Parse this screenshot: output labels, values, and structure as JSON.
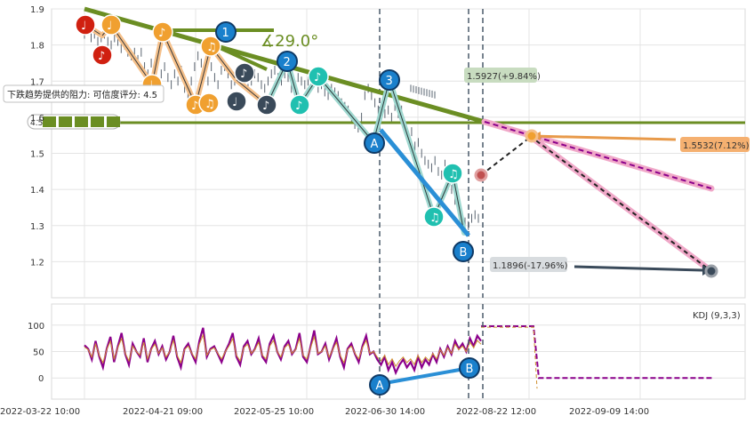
{
  "chart_data": [
    {
      "type": "line",
      "panel": "price",
      "ylim": [
        1.1,
        1.9
      ],
      "y_ticks": [
        "1.9",
        "1.8",
        "1.7",
        "1.6",
        "1.5",
        "1.4",
        "1.3",
        "1.2"
      ],
      "x_ticks": [
        "2022-03-22 10:00",
        "2022-04-21 09:00",
        "2022-05-25 10:00",
        "2022-06-30 14:00",
        "2022-08-22 12:00",
        "2022-09-09 14:00"
      ],
      "grid": true,
      "series": [
        {
          "values": [
            1.83,
            1.84,
            1.82,
            1.83,
            1.81,
            1.82,
            1.83,
            1.81,
            1.8,
            1.82,
            1.81,
            1.79,
            1.8,
            1.78,
            1.77,
            1.78,
            1.76,
            1.78,
            1.74,
            1.72,
            1.75,
            1.73,
            1.7,
            1.72,
            1.74,
            1.71,
            1.69,
            1.72,
            1.7,
            1.73,
            1.68,
            1.66,
            1.7,
            1.74,
            1.77,
            1.75,
            1.72,
            1.7,
            1.74,
            1.71,
            1.69,
            1.73,
            1.74,
            1.72,
            1.69,
            1.7,
            1.72,
            1.71,
            1.69,
            1.68,
            1.7,
            1.72,
            1.71,
            1.69,
            1.68,
            1.7,
            1.72,
            1.73,
            1.71,
            1.7,
            1.72,
            1.71,
            1.68,
            1.69,
            1.71,
            1.7,
            1.69,
            1.7,
            1.72,
            1.71,
            1.68,
            1.69,
            1.67,
            1.66,
            1.68,
            1.67,
            1.66,
            1.64,
            1.63,
            1.62,
            1.6,
            1.58,
            1.57,
            1.6,
            1.66,
            1.68,
            1.66,
            1.64,
            1.62,
            1.63,
            1.61,
            1.62,
            1.6,
            1.63,
            1.61,
            1.62,
            1.58,
            1.55,
            1.56,
            1.52,
            1.53,
            1.5,
            1.48,
            1.47,
            1.46,
            1.48,
            1.45,
            1.44,
            1.47,
            1.43,
            1.4,
            1.37,
            1.35,
            1.33,
            1.31,
            1.3,
            1.32,
            1.33,
            1.32
          ]
        }
      ],
      "annotations": {
        "angle_label": "∡29.0°",
        "resistance_label": "下跌趋势提供的阻力: 可信度评分: 4.5",
        "rating_label": "4.5",
        "waves": [
          "1",
          "2",
          "3",
          "A",
          "B"
        ],
        "target_up": "1.5927(+9.84%)",
        "target_mid": "1.5532(7.12%)",
        "target_down": "1.1896(-17.96%)"
      },
      "colors": {
        "trend_line": "#6b8e23",
        "wave_line": "#2a8fd6",
        "note_orange": "#f0a030",
        "note_red": "#d02010",
        "note_dark": "#3a4a5a",
        "note_teal": "#20c0b0",
        "circle_blue": "#1a80cc",
        "projection_pink": "#f0a8c8",
        "projection_dash": "#8b008b",
        "label_orange": "#f5b070",
        "label_green": "#c8dcc0",
        "label_gray": "#d8dcdf"
      }
    },
    {
      "type": "line",
      "panel": "indicator",
      "legend": "KDJ (9,3,3)",
      "ylim": [
        -40,
        140
      ],
      "y_ticks": [
        "100",
        "50",
        "0"
      ],
      "series": [
        {
          "values": [
            62,
            55,
            35,
            70,
            40,
            20,
            55,
            78,
            30,
            60,
            85,
            45,
            25,
            65,
            50,
            40,
            75,
            30,
            55,
            70,
            45,
            60,
            35,
            50,
            80,
            40,
            20,
            55,
            65,
            45,
            30,
            70,
            95,
            40,
            55,
            60,
            45,
            30,
            50,
            65,
            85,
            40,
            25,
            60,
            70,
            45,
            55,
            75,
            40,
            30,
            65,
            80,
            50,
            35,
            60,
            70,
            45,
            55,
            85,
            40,
            30,
            60,
            90,
            45,
            50,
            65,
            35,
            55,
            75,
            40,
            20,
            55,
            65,
            45,
            30,
            60,
            80,
            45,
            50,
            35,
            25,
            40,
            15,
            30,
            10,
            25,
            35,
            20,
            30,
            15,
            40,
            20,
            35,
            25,
            45,
            30,
            55,
            40,
            60,
            45,
            70,
            55,
            65,
            50,
            75,
            60,
            80,
            70
          ]
        }
      ],
      "points": [
        "A",
        "B"
      ]
    }
  ]
}
